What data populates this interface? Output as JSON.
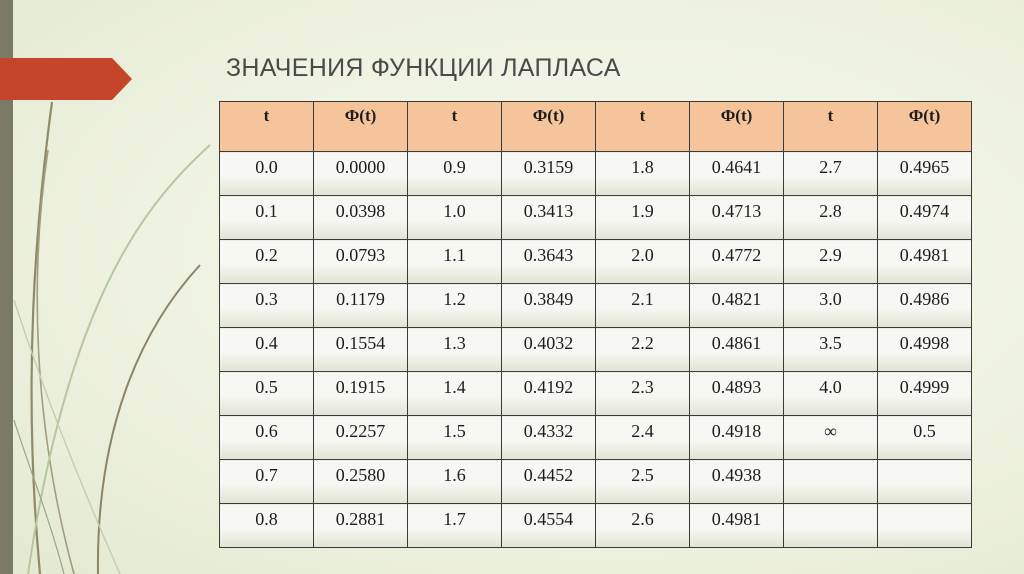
{
  "title": "ЗНАЧЕНИЯ ФУНКЦИИ ЛАПЛАСА",
  "colors": {
    "header_fill": "#f5c49a",
    "accent_arrow": "#c4452a",
    "left_bar": "#7a7a66",
    "background": "#eef2e0"
  },
  "table": {
    "headers": [
      "t",
      "Ф(t)",
      "t",
      "Ф(t)",
      "t",
      "Ф(t)",
      "t",
      "Ф(t)"
    ],
    "rows": [
      [
        "0.0",
        "0.0000",
        "0.9",
        "0.3159",
        "1.8",
        "0.4641",
        "2.7",
        "0.4965"
      ],
      [
        "0.1",
        "0.0398",
        "1.0",
        "0.3413",
        "1.9",
        "0.4713",
        "2.8",
        "0.4974"
      ],
      [
        "0.2",
        "0.0793",
        "1.1",
        "0.3643",
        "2.0",
        "0.4772",
        "2.9",
        "0.4981"
      ],
      [
        "0.3",
        "0.1179",
        "1.2",
        "0.3849",
        "2.1",
        "0.4821",
        "3.0",
        "0.4986"
      ],
      [
        "0.4",
        "0.1554",
        "1.3",
        "0.4032",
        "2.2",
        "0.4861",
        "3.5",
        "0.4998"
      ],
      [
        "0.5",
        "0.1915",
        "1.4",
        "0.4192",
        "2.3",
        "0.4893",
        "4.0",
        "0.4999"
      ],
      [
        "0.6",
        "0.2257",
        "1.5",
        "0.4332",
        "2.4",
        "0.4918",
        "∞",
        "0.5"
      ],
      [
        "0.7",
        "0.2580",
        "1.6",
        "0.4452",
        "2.5",
        "0.4938",
        "",
        ""
      ],
      [
        "0.8",
        "0.2881",
        "1.7",
        "0.4554",
        "2.6",
        "0.4981",
        "",
        ""
      ]
    ]
  }
}
